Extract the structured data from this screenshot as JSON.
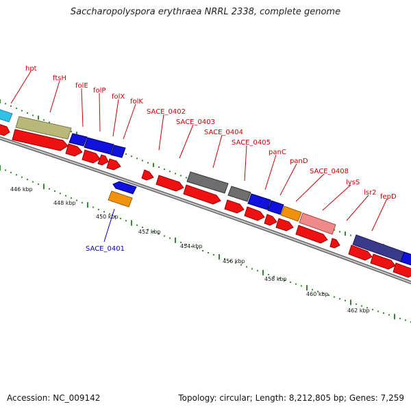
{
  "title": "Saccharopolyspora erythraea NRRL 2338, complete genome",
  "accession": "Accession: NC_009142",
  "summary": "Topology: circular; Length: 8,212,805 bp; Genes: 7,259",
  "colors": {
    "tick": "#2e8b2e",
    "red_label": "#cc0000",
    "blue_label": "#0000cc",
    "gene_red": "#ee1111",
    "gene_blue": "#1111dd",
    "gene_navy": "#3a3a8c",
    "gene_olive": "#b8b87a",
    "gene_gray": "#6e6e6e",
    "gene_orange": "#f0920c",
    "gene_pink": "#ee8a8a",
    "gene_cyan": "#33c0e8",
    "backbone": "#888888"
  },
  "ruler": {
    "labels": [
      "446 kbp",
      "448 kbp",
      "450 kbp",
      "452 kbp",
      "454 kbp",
      "456 kbp",
      "458 kbp",
      "460 kbp",
      "462 kbp"
    ]
  },
  "gene_labels": [
    {
      "text": "hpt",
      "color": "red"
    },
    {
      "text": "ftsH",
      "color": "red"
    },
    {
      "text": "folE",
      "color": "red"
    },
    {
      "text": "folP",
      "color": "red"
    },
    {
      "text": "folX",
      "color": "red"
    },
    {
      "text": "folK",
      "color": "red"
    },
    {
      "text": "SACE_0402",
      "color": "red"
    },
    {
      "text": "SACE_0403",
      "color": "red"
    },
    {
      "text": "SACE_0404",
      "color": "red"
    },
    {
      "text": "SACE_0405",
      "color": "red"
    },
    {
      "text": "panC",
      "color": "red"
    },
    {
      "text": "panD",
      "color": "red"
    },
    {
      "text": "SACE_0408",
      "color": "red"
    },
    {
      "text": "lysS",
      "color": "red"
    },
    {
      "text": "lsr2",
      "color": "red"
    },
    {
      "text": "fepD",
      "color": "red"
    },
    {
      "text": "SACE_0401",
      "color": "blue"
    }
  ]
}
